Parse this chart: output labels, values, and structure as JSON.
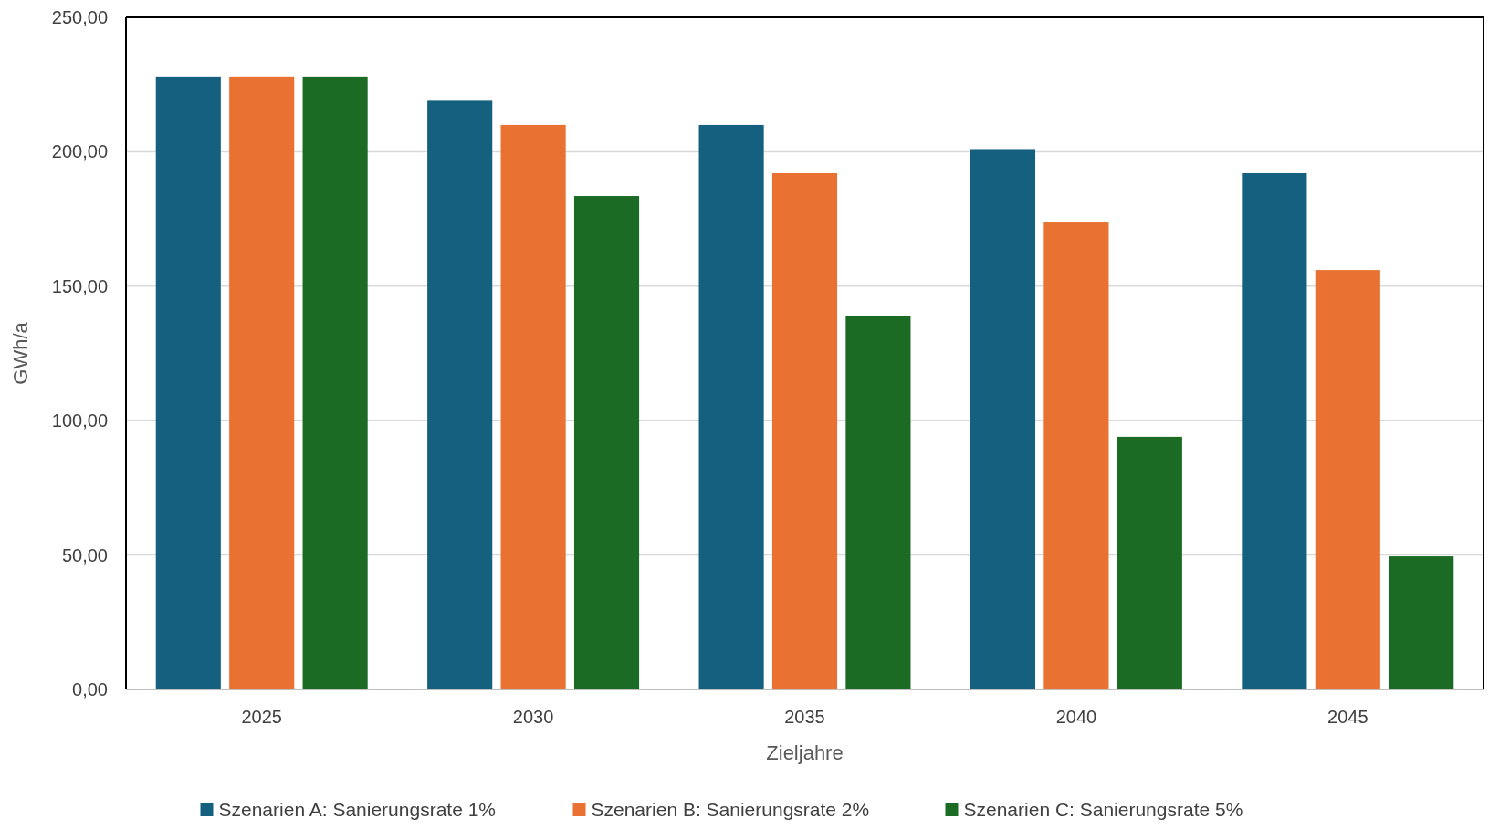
{
  "chart_data": {
    "type": "bar",
    "xlabel": "Zieljahre",
    "ylabel": "GWh/a",
    "categories": [
      "2025",
      "2030",
      "2035",
      "2040",
      "2045"
    ],
    "series": [
      {
        "name": "Szenarien A: Sanierungsrate 1%",
        "color": "#16607f",
        "values": [
          228,
          219,
          210,
          201,
          192
        ]
      },
      {
        "name": "Szenarien B: Sanierungsrate 2%",
        "color": "#e97132",
        "values": [
          228,
          210,
          192,
          174,
          156
        ]
      },
      {
        "name": "Szenarien C: Sanierungsrate 5%",
        "color": "#1b6b25",
        "values": [
          228,
          183.5,
          139,
          94,
          49.5
        ]
      }
    ],
    "ylim": [
      0,
      250
    ],
    "yticks": [
      {
        "value": 0,
        "label": "0,00"
      },
      {
        "value": 50,
        "label": "50,00"
      },
      {
        "value": 100,
        "label": "100,00"
      },
      {
        "value": 150,
        "label": "150,00"
      },
      {
        "value": 200,
        "label": "200,00"
      },
      {
        "value": 250,
        "label": "250,00"
      }
    ],
    "grid": "y",
    "legend": "bottom"
  }
}
